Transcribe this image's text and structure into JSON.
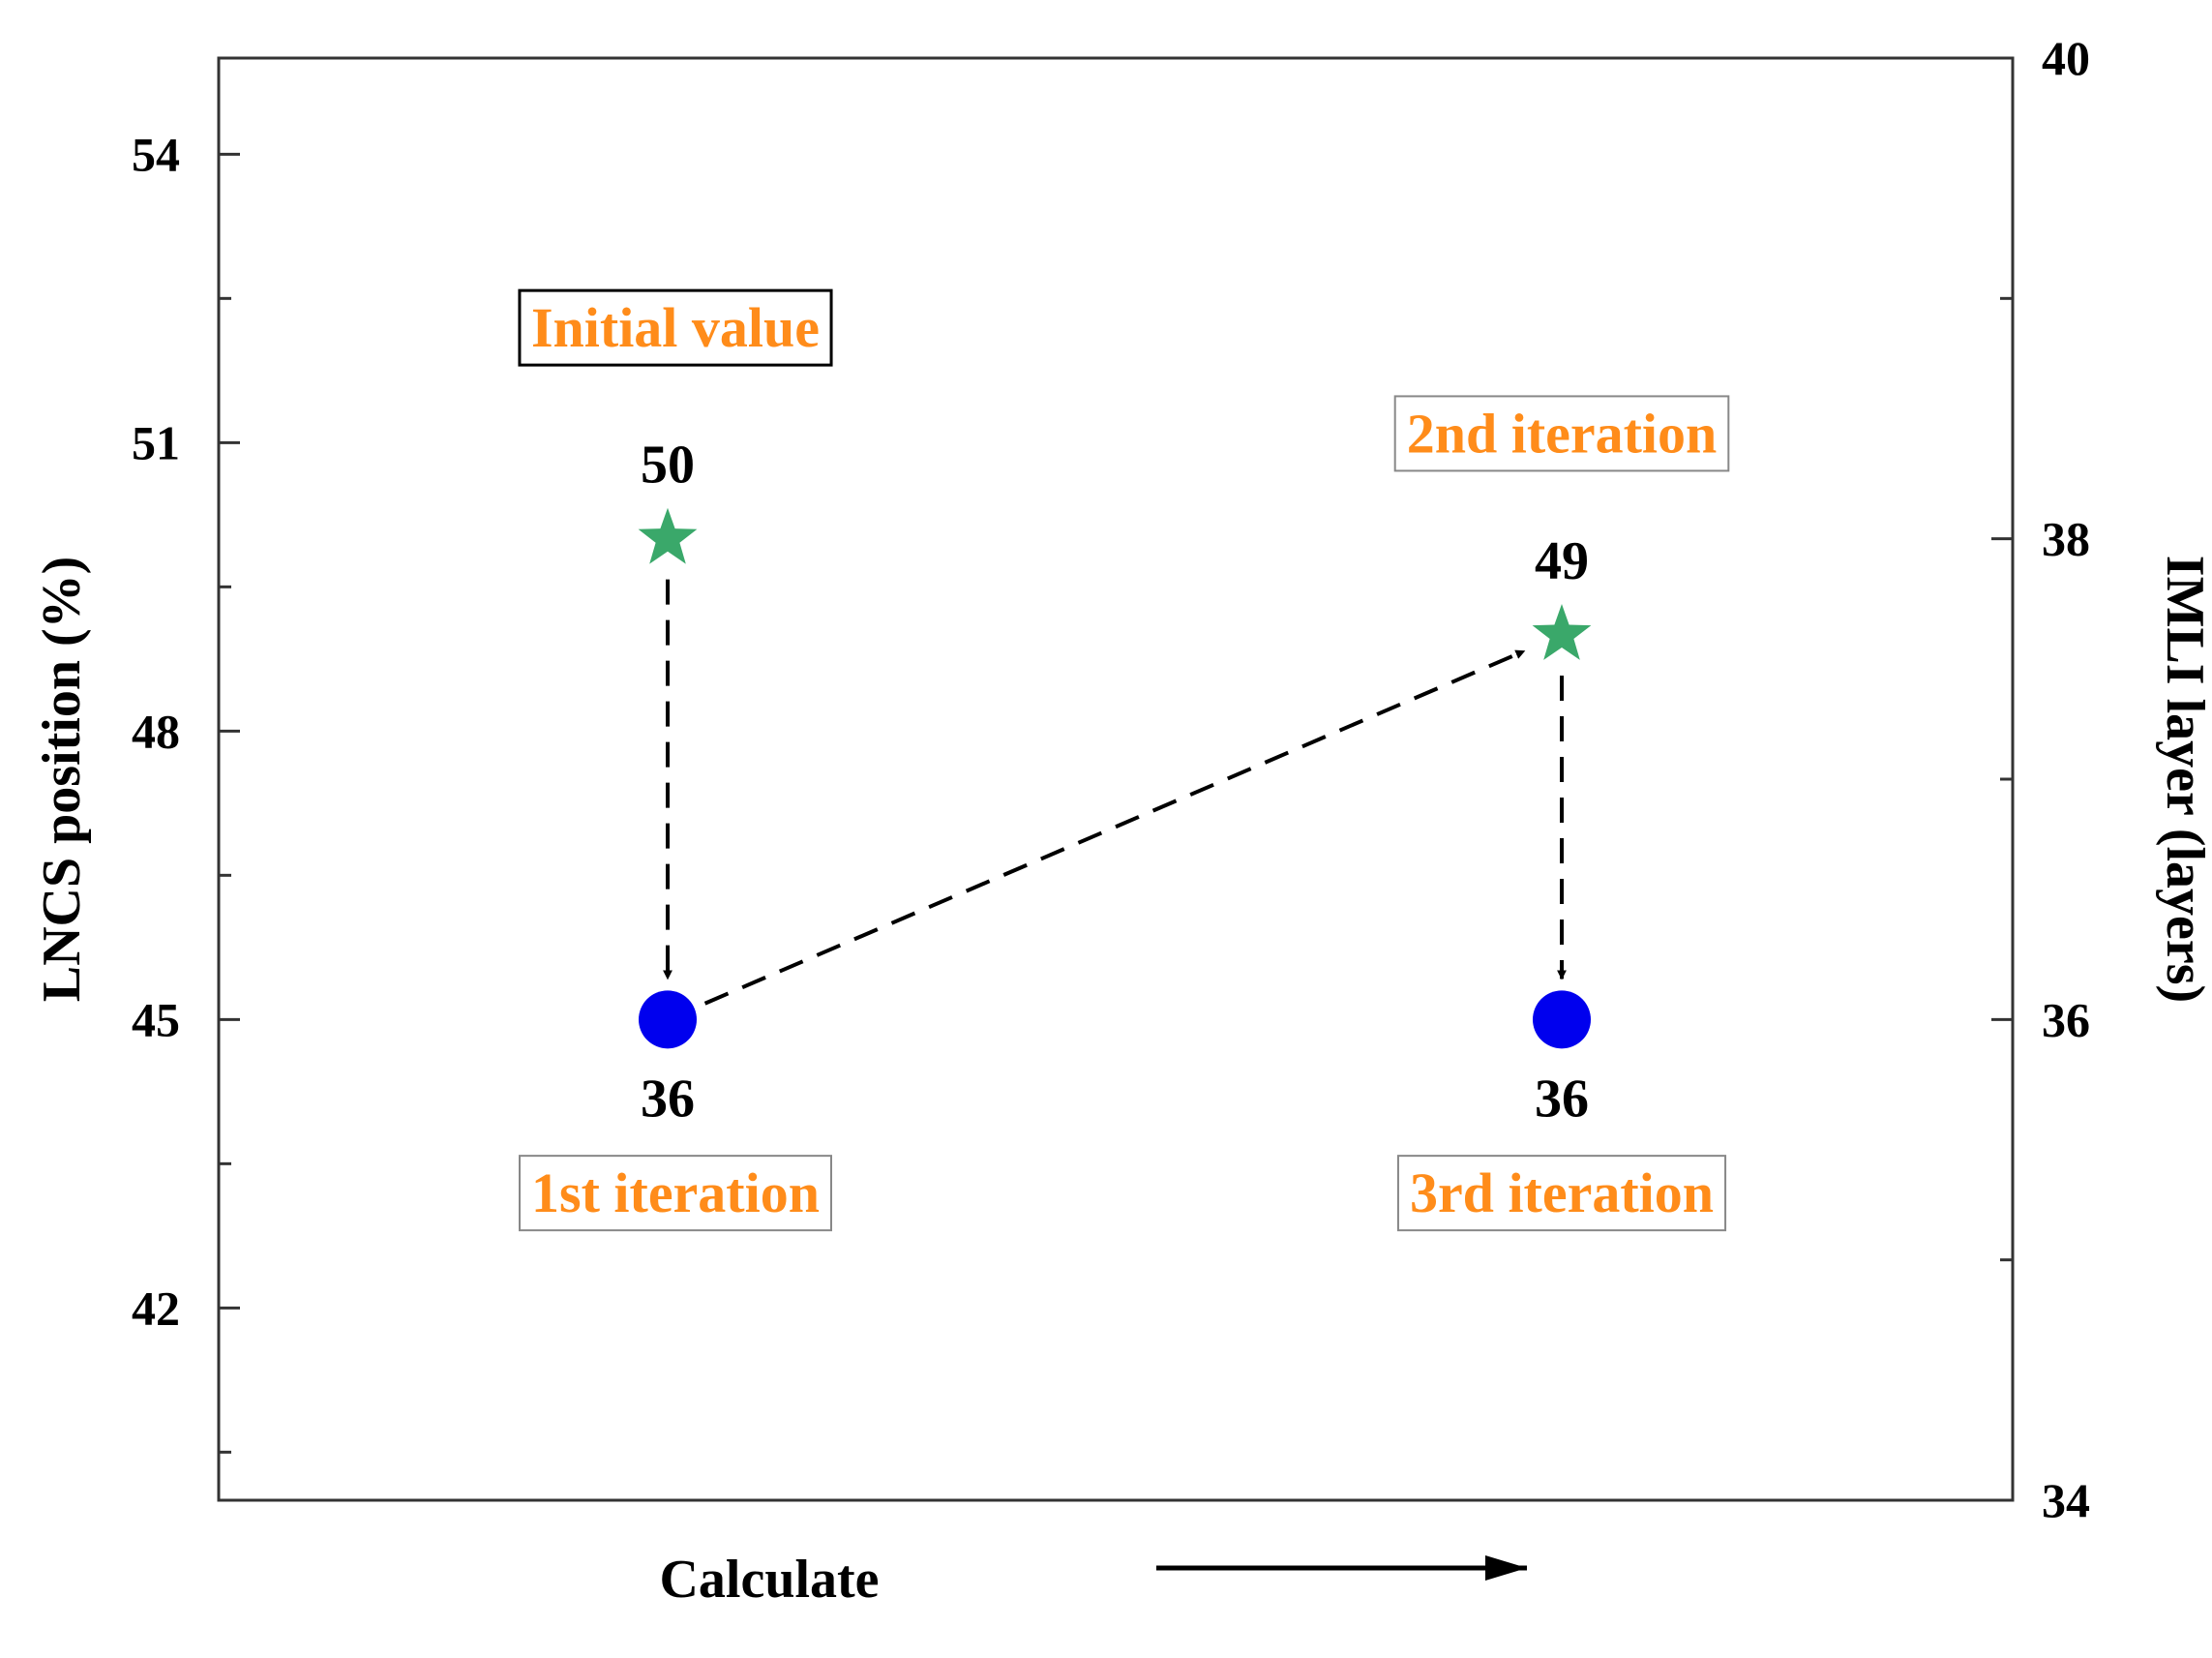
{
  "chart_data": {
    "type": "scatter",
    "title": "",
    "xlabel": "Calculate",
    "ylabel": "LNCS position (%)",
    "y2label": "IMLI layer (layers)",
    "x_categories": [
      "Initial value",
      "1st iteration",
      "2nd iteration",
      "3rd iteration"
    ],
    "ylim": [
      40,
      55
    ],
    "y2lim": [
      34,
      40
    ],
    "yticks_major": [
      42,
      45,
      48,
      51,
      54
    ],
    "yticks_minor": [
      40.5,
      43.5,
      46.5,
      49.5,
      52.5
    ],
    "y2ticks_major": [
      34,
      36,
      38,
      40
    ],
    "y2ticks_minor": [
      35,
      37,
      39
    ],
    "grid": false,
    "series": [
      {
        "marker": "star",
        "color": "#3aa86a",
        "points": [
          {
            "x": 1,
            "y": 50,
            "label": "50"
          },
          {
            "x": 2,
            "y": 49,
            "label": "49"
          }
        ]
      },
      {
        "marker": "circle",
        "color": "#0000ee",
        "points": [
          {
            "x": 1,
            "y": 45,
            "label": "36"
          },
          {
            "x": 2,
            "y": 45,
            "label": "36"
          }
        ]
      }
    ],
    "annotations": [
      {
        "text": "Initial value",
        "x": 1,
        "y": 52.2,
        "border": "#000000"
      },
      {
        "text": "1st iteration",
        "x": 1,
        "y": 43.2,
        "border": "#888888"
      },
      {
        "text": "2nd iteration",
        "x": 2,
        "y": 51.1,
        "border": "#888888"
      },
      {
        "text": "3rd iteration",
        "x": 2,
        "y": 43.2,
        "border": "#888888"
      }
    ],
    "arrows": [
      {
        "from": [
          1,
          50
        ],
        "to": [
          1,
          45
        ],
        "style": "dashed"
      },
      {
        "from": [
          1,
          45
        ],
        "to": [
          2,
          49
        ],
        "style": "dashed"
      },
      {
        "from": [
          2,
          49
        ],
        "to": [
          2,
          45
        ],
        "style": "dashed"
      }
    ],
    "text_color": "#000000",
    "annotation_text_color": "#ff8c1a"
  }
}
